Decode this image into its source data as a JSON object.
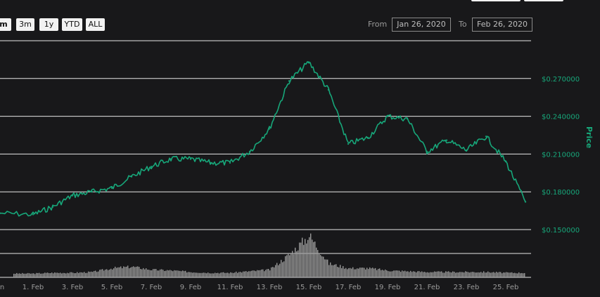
{
  "range_selector": {
    "buttons": [
      "m",
      "3m",
      "1y",
      "YTD",
      "ALL"
    ],
    "active": "m"
  },
  "date_range": {
    "from_label": "From",
    "from_value": "Jan 26, 2020",
    "to_label": "To",
    "to_value": "Feb 26, 2020"
  },
  "colors": {
    "background": "#18181a",
    "price_line": "#17a77a",
    "price_axis_text": "#17a77a",
    "volume_bars": "#9a9a9a",
    "grid": "#e6e6e6",
    "axis_text": "#9a9a9a"
  },
  "chart_data": {
    "type": "line",
    "ylabel": "Price",
    "ylim": [
      0.15,
      0.3
    ],
    "y_ticks": [
      "$0.150000",
      "$0.180000",
      "$0.210000",
      "$0.240000",
      "$0.270000"
    ],
    "x_ticks": [
      "n",
      "1. Feb",
      "3. Feb",
      "5. Feb",
      "7. Feb",
      "9. Feb",
      "11. Feb",
      "13. Feb",
      "15. Feb",
      "17. Feb",
      "19. Feb",
      "21. Feb",
      "23. Feb",
      "25. Feb"
    ],
    "grid": true,
    "series": [
      {
        "x": [
          "Jan 31",
          "Feb 1",
          "Feb 2",
          "Feb 3",
          "Feb 4",
          "Feb 5",
          "Feb 6",
          "Feb 7",
          "Feb 8",
          "Feb 9",
          "Feb 10",
          "Feb 11",
          "Feb 12",
          "Feb 13",
          "Feb 14",
          "Feb 15",
          "Feb 16",
          "Feb 17",
          "Feb 18",
          "Feb 19",
          "Feb 20",
          "Feb 21",
          "Feb 22",
          "Feb 23",
          "Feb 24",
          "Feb 25",
          "Feb 26"
        ],
        "values": [
          0.163,
          0.162,
          0.168,
          0.177,
          0.18,
          0.183,
          0.192,
          0.2,
          0.206,
          0.206,
          0.203,
          0.203,
          0.212,
          0.23,
          0.268,
          0.283,
          0.261,
          0.218,
          0.223,
          0.24,
          0.238,
          0.212,
          0.221,
          0.213,
          0.224,
          0.204,
          0.172
        ]
      }
    ],
    "volume": {
      "x": [
        "Jan 31",
        "Feb 1",
        "Feb 2",
        "Feb 3",
        "Feb 4",
        "Feb 5",
        "Feb 6",
        "Feb 7",
        "Feb 8",
        "Feb 9",
        "Feb 10",
        "Feb 11",
        "Feb 12",
        "Feb 13",
        "Feb 14",
        "Feb 15",
        "Feb 16",
        "Feb 17",
        "Feb 18",
        "Feb 19",
        "Feb 20",
        "Feb 21",
        "Feb 22",
        "Feb 23",
        "Feb 24",
        "Feb 25",
        "Feb 26"
      ],
      "values": [
        0.5,
        0.5,
        0.6,
        0.6,
        0.7,
        1.2,
        1.4,
        1.0,
        0.9,
        0.7,
        0.6,
        0.6,
        0.8,
        1.0,
        3.0,
        5.5,
        1.8,
        1.2,
        1.2,
        0.9,
        0.8,
        0.7,
        0.7,
        0.7,
        0.7,
        0.6,
        0.6
      ]
    }
  }
}
